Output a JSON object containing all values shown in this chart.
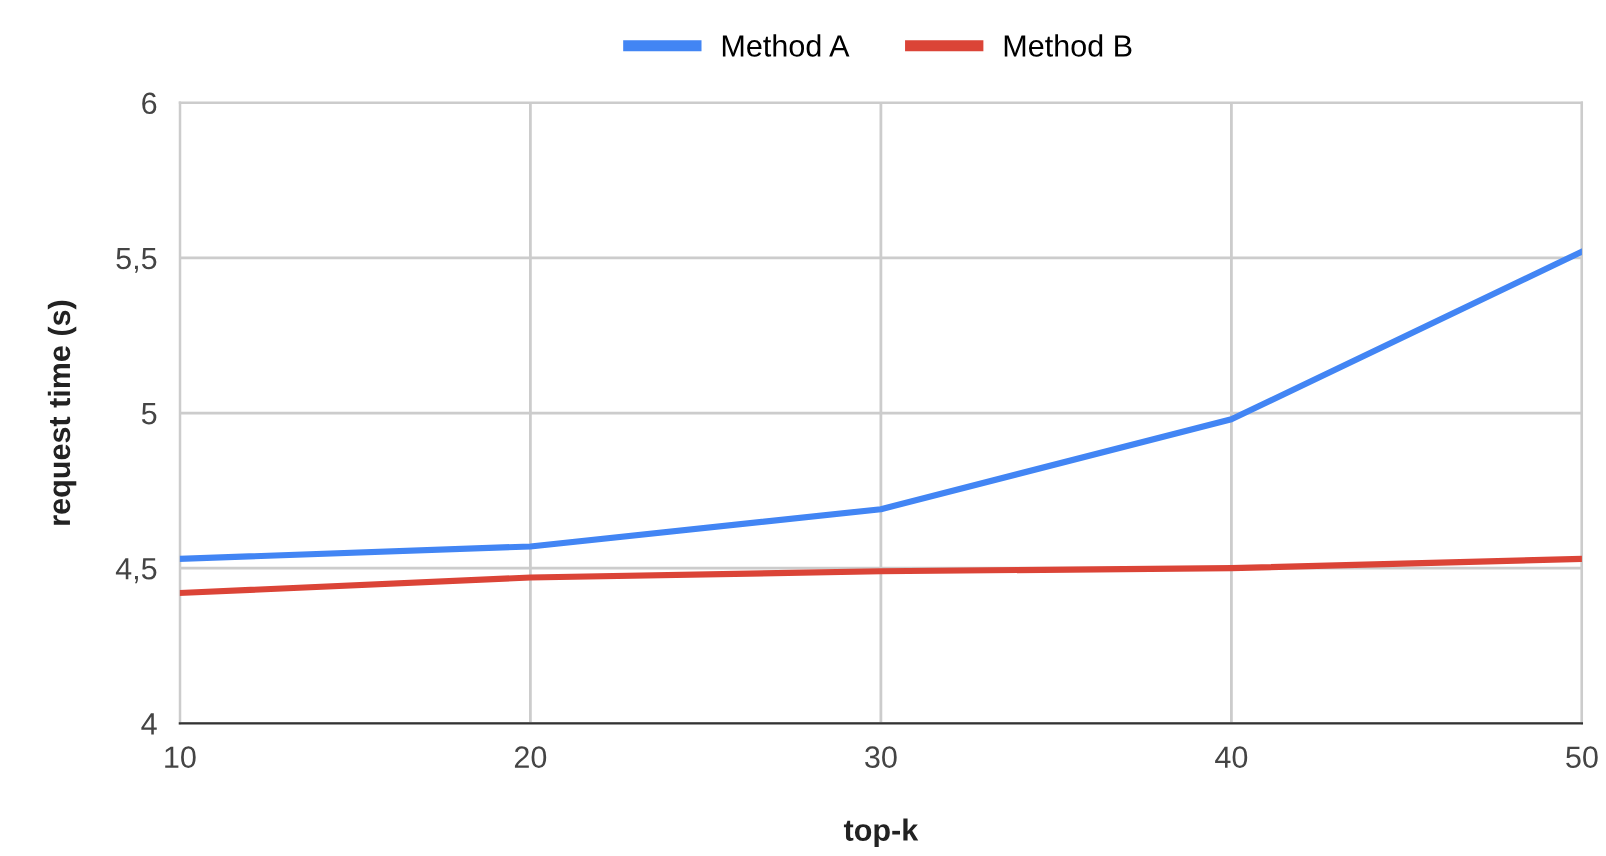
{
  "chart_data": {
    "type": "line",
    "xlabel": "top-k",
    "ylabel": "request time (s)",
    "x": [
      10,
      20,
      30,
      40,
      50
    ],
    "series": [
      {
        "name": "Method A",
        "color": "#4285f4",
        "values": [
          4.53,
          4.57,
          4.69,
          4.98,
          5.52
        ]
      },
      {
        "name": "Method B",
        "color": "#db4437",
        "values": [
          4.42,
          4.47,
          4.49,
          4.5,
          4.53
        ]
      }
    ],
    "xlim": [
      10,
      50
    ],
    "xticks": [
      10,
      20,
      30,
      40,
      50
    ],
    "ylim": [
      4,
      6
    ],
    "yticks": [
      4,
      {
        "value": 4.5,
        "label": "4,5"
      },
      5,
      {
        "value": 5.5,
        "label": "5,5"
      },
      6
    ],
    "grid": true,
    "legend": "top",
    "marker": "none",
    "line_style": "solid"
  }
}
